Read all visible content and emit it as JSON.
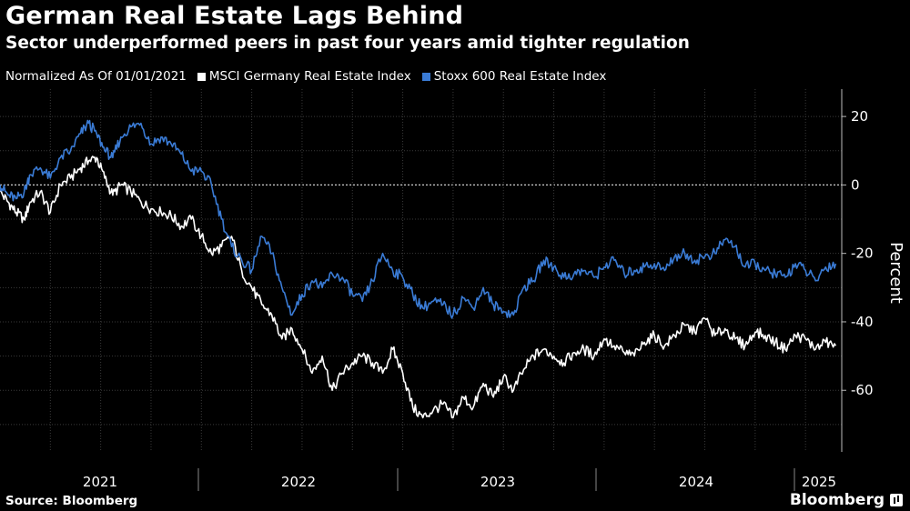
{
  "chart_data": {
    "type": "line",
    "title": "German Real Estate Lags Behind",
    "subtitle": "Sector underperformed peers in past four years amid tighter regulation",
    "note": "Normalized As Of 01/01/2021",
    "ylabel": "Percent",
    "ylim": [
      -78,
      28
    ],
    "yticks": [
      20,
      0,
      -20,
      -40,
      -60
    ],
    "xlim": [
      2021.0,
      2025.18
    ],
    "xticks": [
      {
        "label": "2021",
        "at": 2021.0
      },
      {
        "label": "2022",
        "at": 2022.0
      },
      {
        "label": "2023",
        "at": 2023.0
      },
      {
        "label": "2024",
        "at": 2024.0
      },
      {
        "label": "2025",
        "at": 2025.0
      }
    ],
    "series": [
      {
        "name": "MSCI Germany Real Estate Index",
        "color": "#ffffff",
        "x": [
          2021.0,
          2021.04,
          2021.08,
          2021.12,
          2021.15,
          2021.2,
          2021.25,
          2021.3,
          2021.35,
          2021.4,
          2021.44,
          2021.48,
          2021.52,
          2021.56,
          2021.6,
          2021.65,
          2021.7,
          2021.75,
          2021.8,
          2021.85,
          2021.9,
          2021.95,
          2022.0,
          2022.05,
          2022.1,
          2022.15,
          2022.2,
          2022.25,
          2022.3,
          2022.35,
          2022.4,
          2022.45,
          2022.5,
          2022.55,
          2022.6,
          2022.65,
          2022.7,
          2022.75,
          2022.8,
          2022.85,
          2022.9,
          2022.95,
          2023.0,
          2023.05,
          2023.1,
          2023.15,
          2023.2,
          2023.25,
          2023.3,
          2023.35,
          2023.4,
          2023.45,
          2023.5,
          2023.55,
          2023.6,
          2023.65,
          2023.7,
          2023.75,
          2023.8,
          2023.85,
          2023.9,
          2023.95,
          2024.0,
          2024.05,
          2024.1,
          2024.15,
          2024.2,
          2024.25,
          2024.3,
          2024.35,
          2024.4,
          2024.45,
          2024.5,
          2024.55,
          2024.6,
          2024.65,
          2024.7,
          2024.75,
          2024.8,
          2024.85,
          2024.9,
          2024.95,
          2025.0,
          2025.05,
          2025.1,
          2025.15
        ],
        "values": [
          -2,
          -5,
          -8,
          -10,
          -5,
          -2,
          -8,
          0,
          2,
          5,
          7,
          8,
          2,
          -3,
          0,
          -2,
          -5,
          -7,
          -8,
          -9,
          -12,
          -10,
          -15,
          -20,
          -18,
          -15,
          -25,
          -30,
          -35,
          -38,
          -45,
          -42,
          -48,
          -55,
          -50,
          -60,
          -55,
          -52,
          -50,
          -52,
          -55,
          -48,
          -55,
          -65,
          -68,
          -66,
          -64,
          -68,
          -62,
          -65,
          -58,
          -62,
          -56,
          -60,
          -54,
          -50,
          -48,
          -50,
          -52,
          -49,
          -48,
          -50,
          -45,
          -47,
          -49,
          -50,
          -46,
          -44,
          -47,
          -44,
          -41,
          -43,
          -39,
          -44,
          -42,
          -45,
          -47,
          -43,
          -44,
          -46,
          -48,
          -44,
          -45,
          -48,
          -46,
          -47
        ]
      },
      {
        "name": "Stoxx 600 Real Estate Index",
        "color": "#3a7bd5",
        "x": [
          2021.0,
          2021.04,
          2021.08,
          2021.12,
          2021.15,
          2021.2,
          2021.25,
          2021.3,
          2021.35,
          2021.4,
          2021.44,
          2021.48,
          2021.52,
          2021.56,
          2021.6,
          2021.65,
          2021.7,
          2021.75,
          2021.8,
          2021.85,
          2021.9,
          2021.95,
          2022.0,
          2022.05,
          2022.1,
          2022.15,
          2022.2,
          2022.25,
          2022.3,
          2022.35,
          2022.4,
          2022.45,
          2022.5,
          2022.55,
          2022.6,
          2022.65,
          2022.7,
          2022.75,
          2022.8,
          2022.85,
          2022.9,
          2022.95,
          2023.0,
          2023.05,
          2023.1,
          2023.15,
          2023.2,
          2023.25,
          2023.3,
          2023.35,
          2023.4,
          2023.45,
          2023.5,
          2023.55,
          2023.6,
          2023.65,
          2023.7,
          2023.75,
          2023.8,
          2023.85,
          2023.9,
          2023.95,
          2024.0,
          2024.05,
          2024.1,
          2024.15,
          2024.2,
          2024.25,
          2024.3,
          2024.35,
          2024.4,
          2024.45,
          2024.5,
          2024.55,
          2024.6,
          2024.65,
          2024.7,
          2024.75,
          2024.8,
          2024.85,
          2024.9,
          2024.95,
          2025.0,
          2025.05,
          2025.1,
          2025.15
        ],
        "values": [
          0,
          -3,
          -4,
          -2,
          3,
          5,
          2,
          8,
          10,
          15,
          18,
          15,
          10,
          8,
          14,
          17,
          18,
          12,
          14,
          12,
          9,
          4,
          4,
          0,
          -10,
          -18,
          -22,
          -25,
          -15,
          -20,
          -30,
          -38,
          -32,
          -28,
          -30,
          -26,
          -27,
          -32,
          -34,
          -28,
          -20,
          -25,
          -27,
          -32,
          -36,
          -34,
          -35,
          -38,
          -33,
          -36,
          -30,
          -35,
          -37,
          -38,
          -30,
          -28,
          -22,
          -24,
          -27,
          -26,
          -25,
          -27,
          -24,
          -22,
          -26,
          -25,
          -24,
          -23,
          -25,
          -21,
          -20,
          -22,
          -21,
          -20,
          -16,
          -18,
          -24,
          -23,
          -25,
          -26,
          -27,
          -23,
          -25,
          -28,
          -24,
          -23
        ]
      }
    ]
  },
  "footer": {
    "source": "Source: Bloomberg",
    "brand": "Bloomberg"
  }
}
